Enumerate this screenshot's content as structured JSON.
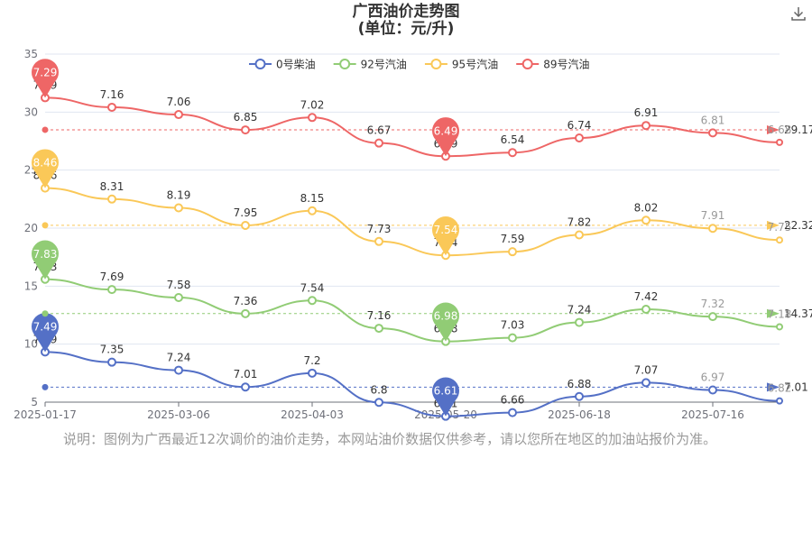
{
  "title": {
    "line1": "广西油价走势图",
    "line2": "(单位：元/升)"
  },
  "note": "说明：图例为广西最近12次调价的油价走势，本网站油价数据仅供参考，请以您所在地区的加油站报价为准。",
  "chart_data": {
    "type": "line",
    "title": "广西油价走势图",
    "subtitle": "(单位：元/升)",
    "legend_position": "top",
    "grid": true,
    "x_tick_labels": [
      "2025-01-17",
      "2025-03-06",
      "2025-04-03",
      "2025-05-20",
      "2025-06-18",
      "2025-07-16"
    ],
    "y_ticks": [
      5,
      10,
      15,
      20,
      25,
      30,
      35
    ],
    "ylim": [
      5,
      35
    ],
    "series": [
      {
        "name": "0号柴油",
        "color": "#5470c6",
        "values": [
          7.49,
          7.35,
          7.24,
          7.01,
          7.2,
          6.8,
          6.61,
          6.66,
          6.88,
          7.07,
          6.97,
          6.82
        ],
        "max_label": "7.49",
        "min_label": "6.61",
        "avg_label": "7.01"
      },
      {
        "name": "92号汽油",
        "color": "#91cc75",
        "values": [
          7.83,
          7.69,
          7.58,
          7.36,
          7.54,
          7.16,
          6.98,
          7.03,
          7.24,
          7.42,
          7.32,
          7.18
        ],
        "max_label": "7.83",
        "min_label": "6.98",
        "avg_label": "14.37"
      },
      {
        "name": "95号汽油",
        "color": "#fac858",
        "values": [
          8.46,
          8.31,
          8.19,
          7.95,
          8.15,
          7.73,
          7.54,
          7.59,
          7.82,
          8.02,
          7.91,
          7.75
        ],
        "max_label": "8.46",
        "min_label": "7.54",
        "avg_label": "22.32"
      },
      {
        "name": "89号汽油",
        "color": "#ee6666",
        "values": [
          7.29,
          7.16,
          7.06,
          6.85,
          7.02,
          6.67,
          6.49,
          6.54,
          6.74,
          6.91,
          6.81,
          6.68
        ],
        "max_label": "7.29",
        "min_label": "6.49",
        "avg_label": "29.17"
      }
    ]
  }
}
